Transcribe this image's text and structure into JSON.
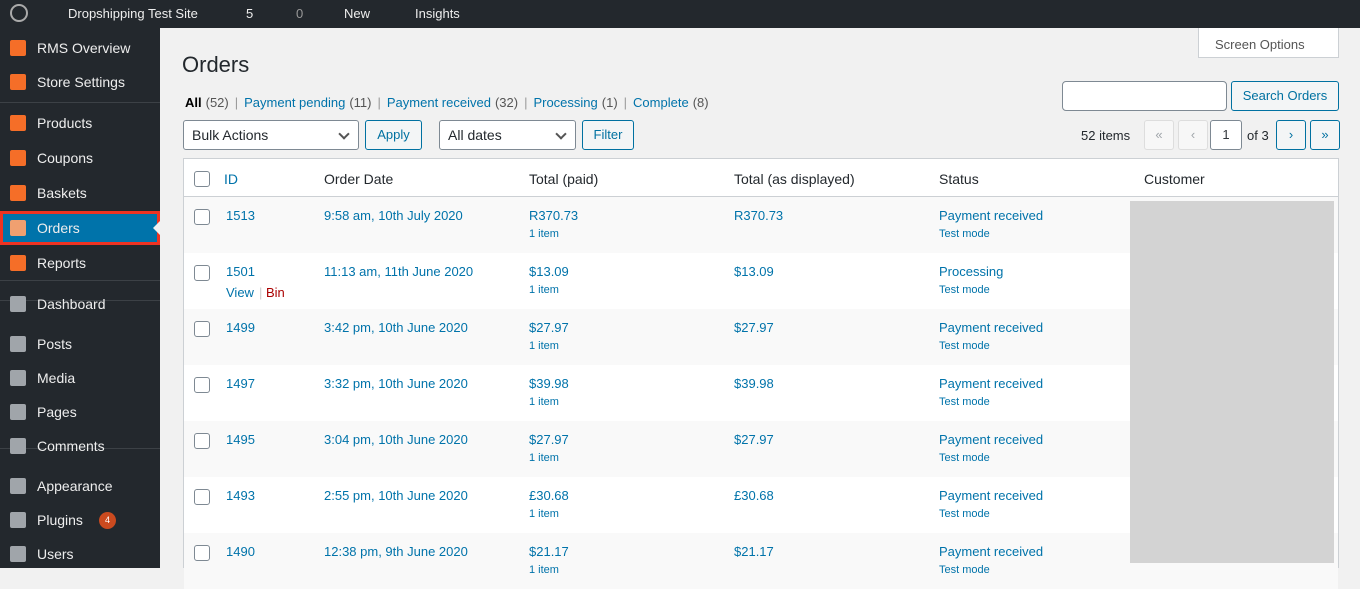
{
  "admin_bar": {
    "site": "Dropshipping Test Site",
    "updates": "5",
    "comments": "0",
    "new": "New",
    "insights": "Insights"
  },
  "menu": [
    {
      "label": "RMS Overview"
    },
    {
      "label": "Store Settings"
    },
    {
      "label": "Products"
    },
    {
      "label": "Coupons"
    },
    {
      "label": "Baskets"
    },
    {
      "label": "Orders"
    },
    {
      "label": "Reports"
    },
    {
      "label": "Dashboard"
    },
    {
      "label": "Posts"
    },
    {
      "label": "Media"
    },
    {
      "label": "Pages"
    },
    {
      "label": "Comments"
    },
    {
      "label": "Appearance"
    },
    {
      "label": "Plugins",
      "badge": "4"
    },
    {
      "label": "Users"
    }
  ],
  "screen_options": "Screen Options",
  "page_title": "Orders",
  "filters": [
    {
      "label": "All",
      "count": "(52)"
    },
    {
      "label": "Payment pending",
      "count": "(11)"
    },
    {
      "label": "Payment received",
      "count": "(32)"
    },
    {
      "label": "Processing",
      "count": "(1)"
    },
    {
      "label": "Complete",
      "count": "(8)"
    }
  ],
  "search_button": "Search Orders",
  "bulk_actions": "Bulk Actions",
  "apply": "Apply",
  "dates": "All dates",
  "filter": "Filter",
  "pagination": {
    "items": "52 items",
    "first": "«",
    "prev": "‹",
    "page": "1",
    "of": "of 3",
    "next": "›",
    "last": "»"
  },
  "table": {
    "columns": [
      "ID",
      "Order Date",
      "Total (paid)",
      "Total (as displayed)",
      "Status",
      "Customer"
    ],
    "rows": [
      {
        "id": "1513",
        "date": "9:58 am, 10th July 2020",
        "paid": "R370.73",
        "items": "1 item",
        "displayed": "R370.73",
        "status": "Payment received",
        "mode": "Test mode"
      },
      {
        "id": "1501",
        "date": "11:13 am, 11th June 2020",
        "paid": "$13.09",
        "items": "1 item",
        "displayed": "$13.09",
        "status": "Processing",
        "mode": "Test mode",
        "actions": [
          "View",
          "Bin"
        ]
      },
      {
        "id": "1499",
        "date": "3:42 pm, 10th June 2020",
        "paid": "$27.97",
        "items": "1 item",
        "displayed": "$27.97",
        "status": "Payment received",
        "mode": "Test mode"
      },
      {
        "id": "1497",
        "date": "3:32 pm, 10th June 2020",
        "paid": "$39.98",
        "items": "1 item",
        "displayed": "$39.98",
        "status": "Payment received",
        "mode": "Test mode"
      },
      {
        "id": "1495",
        "date": "3:04 pm, 10th June 2020",
        "paid": "$27.97",
        "items": "1 item",
        "displayed": "$27.97",
        "status": "Payment received",
        "mode": "Test mode"
      },
      {
        "id": "1493",
        "date": "2:55 pm, 10th June 2020",
        "paid": "£30.68",
        "items": "1 item",
        "displayed": "£30.68",
        "status": "Payment received",
        "mode": "Test mode"
      },
      {
        "id": "1490",
        "date": "12:38 pm, 9th June 2020",
        "paid": "$21.17",
        "items": "1 item",
        "displayed": "$21.17",
        "status": "Payment received",
        "mode": "Test mode"
      }
    ]
  }
}
